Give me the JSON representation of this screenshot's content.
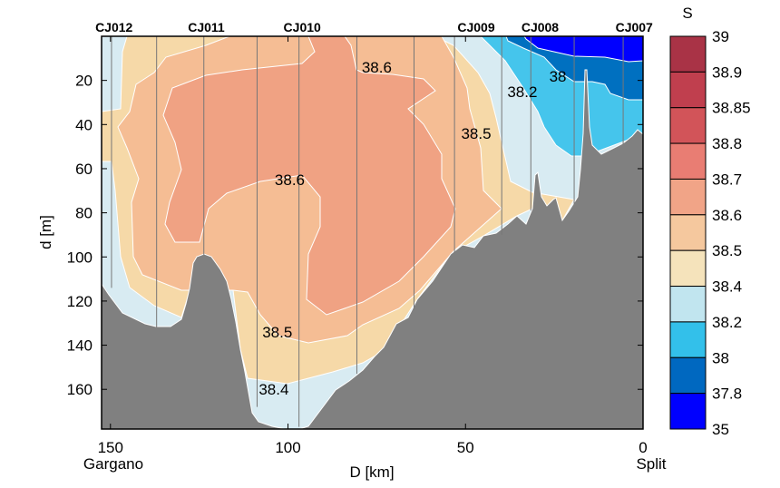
{
  "chart_data": {
    "type": "heatmap",
    "subtype": "filled-contour section",
    "xlabel": "D [km]",
    "ylabel": "d [m]",
    "xlim": [
      152.5,
      0
    ],
    "ylim": [
      0,
      178
    ],
    "x_ticks": [
      150,
      100,
      50,
      0
    ],
    "y_ticks": [
      20,
      40,
      60,
      80,
      100,
      120,
      140,
      160
    ],
    "x_end_labels": {
      "left": "Gargano",
      "right": "Split"
    },
    "colorbar": {
      "title": "S",
      "levels": [
        39,
        38.9,
        38.85,
        38.8,
        38.7,
        38.6,
        38.5,
        38.4,
        38.2,
        38,
        37.8,
        35
      ],
      "level_labels": [
        "39",
        "38.9",
        "38.85",
        "38.8",
        "38.7",
        "38.6",
        "38.5",
        "38.4",
        "38.2",
        "38",
        "37.8",
        "35"
      ],
      "colors": [
        "#a93346",
        "#c03f4e",
        "#d25459",
        "#e97d73",
        "#f1a487",
        "#f5c89e",
        "#f5e3bb",
        "#c1e5ef",
        "#33c0ea",
        "#0068c0",
        "#0000ff"
      ]
    },
    "stations": [
      {
        "name": "CJ012",
        "D": 149.7,
        "depth": 114,
        "label_D": 149
      },
      {
        "name": "CJ011",
        "D": 137.0,
        "depth": 132
      },
      {
        "name": "",
        "D": 123.7,
        "depth": 99
      },
      {
        "name": "CJ010",
        "D": 108.7,
        "depth": 168
      },
      {
        "name": "",
        "D": 96.9,
        "depth": 177
      },
      {
        "name": "",
        "D": 80.6,
        "depth": 153
      },
      {
        "name": "",
        "D": 64.5,
        "depth": 124
      },
      {
        "name": "CJ009",
        "D": 53.1,
        "depth": 98
      },
      {
        "name": "",
        "D": 39.8,
        "depth": 90
      },
      {
        "name": "CJ008",
        "D": 31.6,
        "depth": 79
      },
      {
        "name": "",
        "D": 19.4,
        "depth": 76
      },
      {
        "name": "CJ007",
        "D": 5.6,
        "depth": 49
      }
    ],
    "station_labels": [
      {
        "name": "CJ012",
        "D": 149
      },
      {
        "name": "CJ011",
        "D": 123
      },
      {
        "name": "CJ010",
        "D": 96
      },
      {
        "name": "CJ009",
        "D": 47
      },
      {
        "name": "CJ008",
        "D": 29
      },
      {
        "name": "CJ007",
        "D": 2.5
      }
    ],
    "contour_labels": [
      {
        "text": "38.6",
        "D": 75,
        "d": 14
      },
      {
        "text": "38.6",
        "D": 99.5,
        "d": 65
      },
      {
        "text": "38.5",
        "D": 47,
        "d": 44
      },
      {
        "text": "38.5",
        "D": 103,
        "d": 134
      },
      {
        "text": "38.4",
        "D": 104,
        "d": 160
      },
      {
        "text": "38.2",
        "D": 34,
        "d": 25
      },
      {
        "text": "38",
        "D": 24,
        "d": 18
      }
    ]
  }
}
